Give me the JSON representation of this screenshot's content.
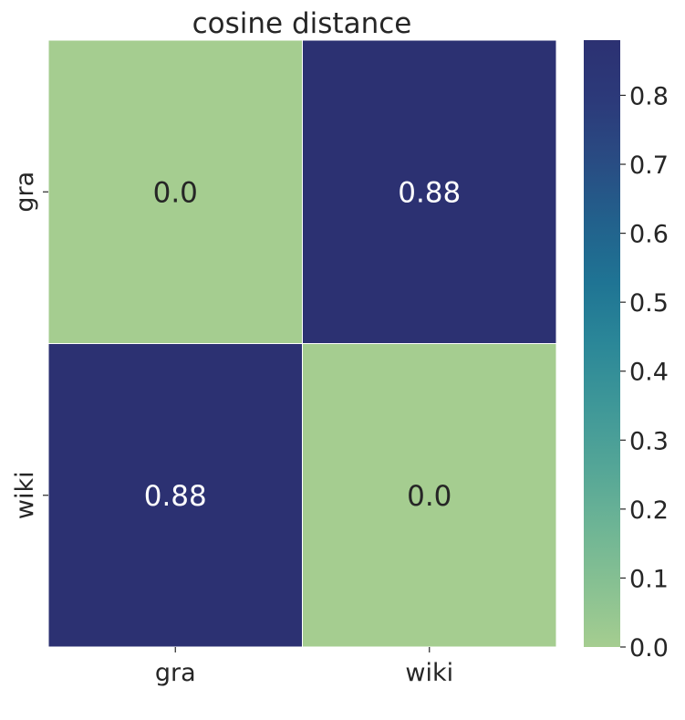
{
  "chart_data": {
    "type": "heatmap",
    "title": "cosine distance",
    "xlabel": "",
    "ylabel": "",
    "x_categories": [
      "gra",
      "wiki"
    ],
    "y_categories": [
      "gra",
      "wiki"
    ],
    "values": [
      [
        0.0,
        0.88
      ],
      [
        0.88,
        0.0
      ]
    ],
    "cell_labels": [
      [
        "0.0",
        "0.88"
      ],
      [
        "0.88",
        "0.0"
      ]
    ],
    "colormap": "crest",
    "vmin": 0.0,
    "vmax": 0.88,
    "colorbar": {
      "ticks": [
        0.0,
        0.1,
        0.2,
        0.3,
        0.4,
        0.5,
        0.6,
        0.7,
        0.8
      ],
      "tick_labels": [
        "0.0",
        "0.1",
        "0.2",
        "0.3",
        "0.4",
        "0.5",
        "0.6",
        "0.7",
        "0.8"
      ]
    },
    "colors": {
      "low": "#a5cd90",
      "high": "#2c3172",
      "cell_border": "#ffffff",
      "text": "#262626",
      "annotation_text": "#ffffff"
    },
    "color_stops": [
      [
        0.0,
        "#a5cd90"
      ],
      [
        0.1,
        "#88c192"
      ],
      [
        0.2,
        "#6db495"
      ],
      [
        0.3,
        "#53a597"
      ],
      [
        0.4,
        "#3e9798"
      ],
      [
        0.5,
        "#2b8798"
      ],
      [
        0.6,
        "#1f7494"
      ],
      [
        0.7,
        "#22618c"
      ],
      [
        0.8,
        "#294c83"
      ],
      [
        0.9,
        "#2c3a7a"
      ],
      [
        1.0,
        "#2c3172"
      ]
    ],
    "legend": "right"
  }
}
